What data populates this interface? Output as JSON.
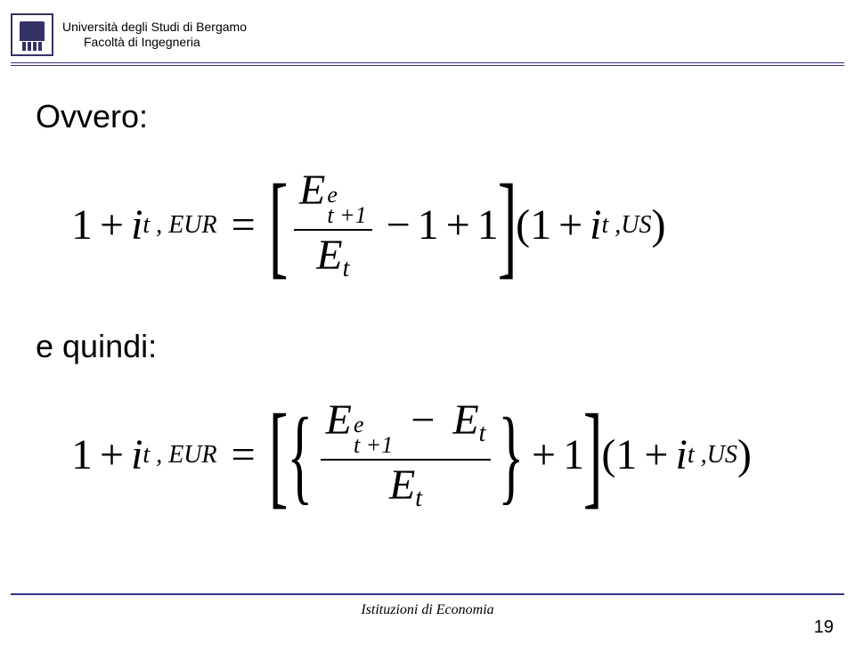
{
  "header": {
    "university": "Università degli Studi di Bergamo",
    "faculty": "Facoltà di Ingegneria"
  },
  "content": {
    "label1": "Ovvero:",
    "label2": "e quindi:",
    "eq1": {
      "lhs_one": "1",
      "plus": "+",
      "i": "i",
      "sub_eur": "t , EUR",
      "eq": "=",
      "E": "E",
      "frac_num_sup": "e",
      "frac_num_sub": "t +1",
      "frac_den_sub": "t",
      "minus": "−",
      "one": "1",
      "lparen": "(",
      "rparen": ")",
      "sub_us": "t ,US"
    }
  },
  "footer": {
    "center": "Istituzioni di Economia",
    "page": "19"
  },
  "style": {
    "rule_color": "#333388",
    "text_color": "#000000",
    "body_font": "Arial",
    "math_font": "Times New Roman",
    "heading_fontsize_pt": 27,
    "math_fontsize_pt": 36
  }
}
